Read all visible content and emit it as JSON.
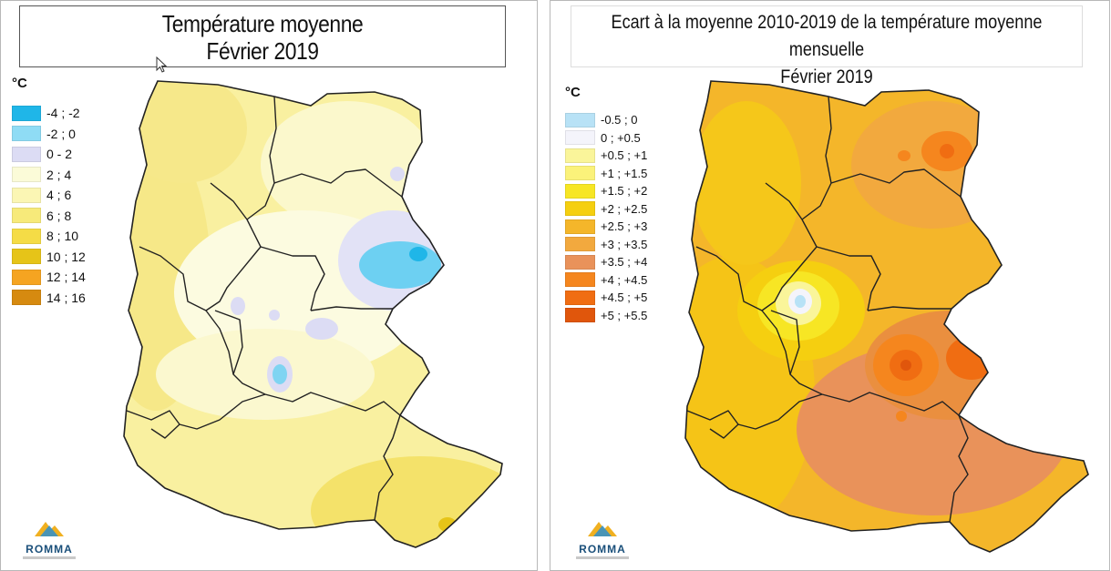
{
  "left_panel": {
    "title_line1": "Température moyenne",
    "title_line2": "Février 2019",
    "unit": "°C",
    "legend": [
      {
        "label": "-4 ; -2",
        "color": "#1fb6e8"
      },
      {
        "label": "-2 ; 0",
        "color": "#8fdcf5"
      },
      {
        "label": "0 - 2",
        "color": "#dcdcf4"
      },
      {
        "label": "2 ; 4",
        "color": "#fbfbd8"
      },
      {
        "label": "4 ; 6",
        "color": "#fbf6b4"
      },
      {
        "label": "6 ; 8",
        "color": "#f7ea7a"
      },
      {
        "label": "8 ; 10",
        "color": "#f5dc46"
      },
      {
        "label": "10 ; 12",
        "color": "#e6c418"
      },
      {
        "label": "12 ; 14",
        "color": "#f5a421"
      },
      {
        "label": "14 ; 16",
        "color": "#d68a10"
      }
    ],
    "logo": "ROMMA"
  },
  "right_panel": {
    "title_line1": "Ecart à la moyenne 2010-2019 de la température moyenne mensuelle",
    "title_line2": "Février 2019",
    "unit": "°C",
    "legend": [
      {
        "label": "-0.5 ; 0",
        "color": "#b8e2f6"
      },
      {
        "label": "0 ; +0.5",
        "color": "#f4f4fb"
      },
      {
        "label": "+0.5 ; +1",
        "color": "#faf59a"
      },
      {
        "label": "+1 ; +1.5",
        "color": "#fbf27a"
      },
      {
        "label": "+1.5 ; +2",
        "color": "#f7e624"
      },
      {
        "label": "+2 ; +2.5",
        "color": "#f5cf10"
      },
      {
        "label": "+2.5 ; +3",
        "color": "#f4b62a"
      },
      {
        "label": "+3 ; +3.5",
        "color": "#f2a93e"
      },
      {
        "label": "+3.5 ; +4",
        "color": "#e9925a"
      },
      {
        "label": "+4 ; +4.5",
        "color": "#f5861e"
      },
      {
        "label": "+4.5 ; +5",
        "color": "#f06d12"
      },
      {
        "label": "+5 ; +5.5",
        "color": "#e0560c"
      }
    ],
    "logo": "ROMMA"
  }
}
